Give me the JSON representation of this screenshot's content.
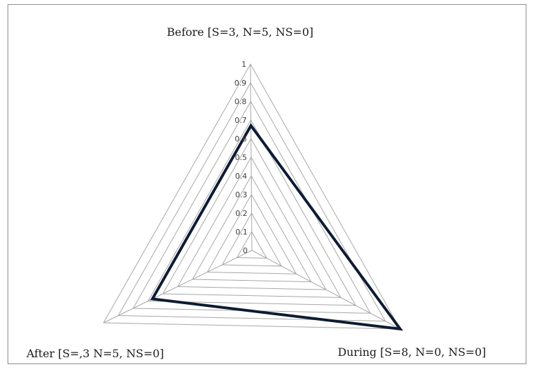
{
  "chart_data": {
    "type": "radar",
    "axes": [
      "Before [S=3, N=5, NS=0]",
      "During [S=8, N=0, NS=0]",
      "After [S=,3 N=5, NS=0]"
    ],
    "ticks": [
      "0",
      "0.1",
      "0.2",
      "0.3",
      "0.4",
      "0.5",
      "0.6",
      "0.7",
      "0.8",
      "0.9",
      "1"
    ],
    "rlim": [
      0,
      1
    ],
    "series": [
      {
        "values": [
          0.67,
          1.0,
          0.67
        ],
        "color": "#0d1b33"
      }
    ],
    "grid": true,
    "grid_color": "#a6a6a6",
    "legend": false
  }
}
